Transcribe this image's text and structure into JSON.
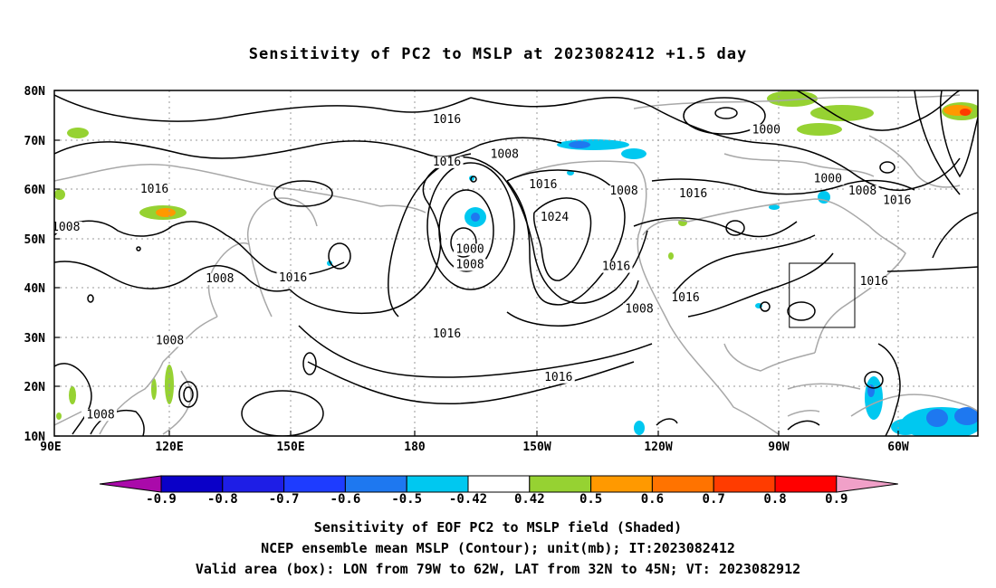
{
  "title": "Sensitivity of PC2 to MSLP at 2023082412 +1.5 day",
  "map": {
    "lat_labels": [
      "80N",
      "70N",
      "60N",
      "50N",
      "40N",
      "30N",
      "20N",
      "10N"
    ],
    "lon_labels": [
      "90E",
      "120E",
      "150E",
      "180",
      "150W",
      "120W",
      "90W",
      "60W"
    ],
    "contour_labels": [
      {
        "text": "1016",
        "lon": -168,
        "lat": 73.6
      },
      {
        "text": "1016",
        "lon": -168,
        "lat": 65
      },
      {
        "text": "1008",
        "lon": -153,
        "lat": 66.5
      },
      {
        "text": "1016",
        "lon": 116,
        "lat": 59.5
      },
      {
        "text": "1008",
        "lon": 93,
        "lat": 51.8
      },
      {
        "text": "1008",
        "lon": 133,
        "lat": 41.3
      },
      {
        "text": "1016",
        "lon": 152,
        "lat": 41.5
      },
      {
        "text": "1000",
        "lon": -162,
        "lat": 47.3
      },
      {
        "text": "1008",
        "lon": -162,
        "lat": 44.2
      },
      {
        "text": "1016",
        "lon": -143,
        "lat": 60.4
      },
      {
        "text": "1024",
        "lon": -140,
        "lat": 53.8
      },
      {
        "text": "1016",
        "lon": -124,
        "lat": 43.8
      },
      {
        "text": "1016",
        "lon": -168,
        "lat": 30.2
      },
      {
        "text": "1008",
        "lon": -118,
        "lat": 35.2
      },
      {
        "text": "1016",
        "lon": -106,
        "lat": 37.5
      },
      {
        "text": "1016",
        "lon": -139,
        "lat": 21.4
      },
      {
        "text": "1008",
        "lon": -122,
        "lat": 59.1
      },
      {
        "text": "1016",
        "lon": -104,
        "lat": 58.6
      },
      {
        "text": "1000",
        "lon": -85,
        "lat": 71.5
      },
      {
        "text": "1000",
        "lon": -69,
        "lat": 61.6
      },
      {
        "text": "1008",
        "lon": -60,
        "lat": 59.1
      },
      {
        "text": "1016",
        "lon": -51,
        "lat": 57.2
      },
      {
        "text": "1016",
        "lon": -57,
        "lat": 40.8
      },
      {
        "text": "1008",
        "lon": 120,
        "lat": 28.8
      },
      {
        "text": "1008",
        "lon": 102,
        "lat": 13.8
      }
    ],
    "valid_box": {
      "lon_min": -79,
      "lon_max": -62,
      "lat_min": 32,
      "lat_max": 45
    }
  },
  "colorbar": {
    "labels": [
      "-0.9",
      "-0.8",
      "-0.7",
      "-0.6",
      "-0.5",
      "-0.42",
      "0.42",
      "0.5",
      "0.6",
      "0.7",
      "0.8",
      "0.9"
    ],
    "colors": [
      "#aa0aaa",
      "#0a00c8",
      "#1e1ee6",
      "#1e3cff",
      "#1e78f0",
      "#00c8f0",
      "#ffffff",
      "#96d232",
      "#ff9900",
      "#ff7300",
      "#ff3c00",
      "#ff0000",
      "#f0a0c8"
    ]
  },
  "captions": {
    "line1": "Sensitivity of EOF PC2 to MSLP field (Shaded)",
    "line2": "NCEP ensemble mean MSLP (Contour); unit(mb); IT:2023082412",
    "line3": "Valid area (box): LON from 79W to 62W, LAT from 32N to 45N; VT: 2023082912"
  }
}
